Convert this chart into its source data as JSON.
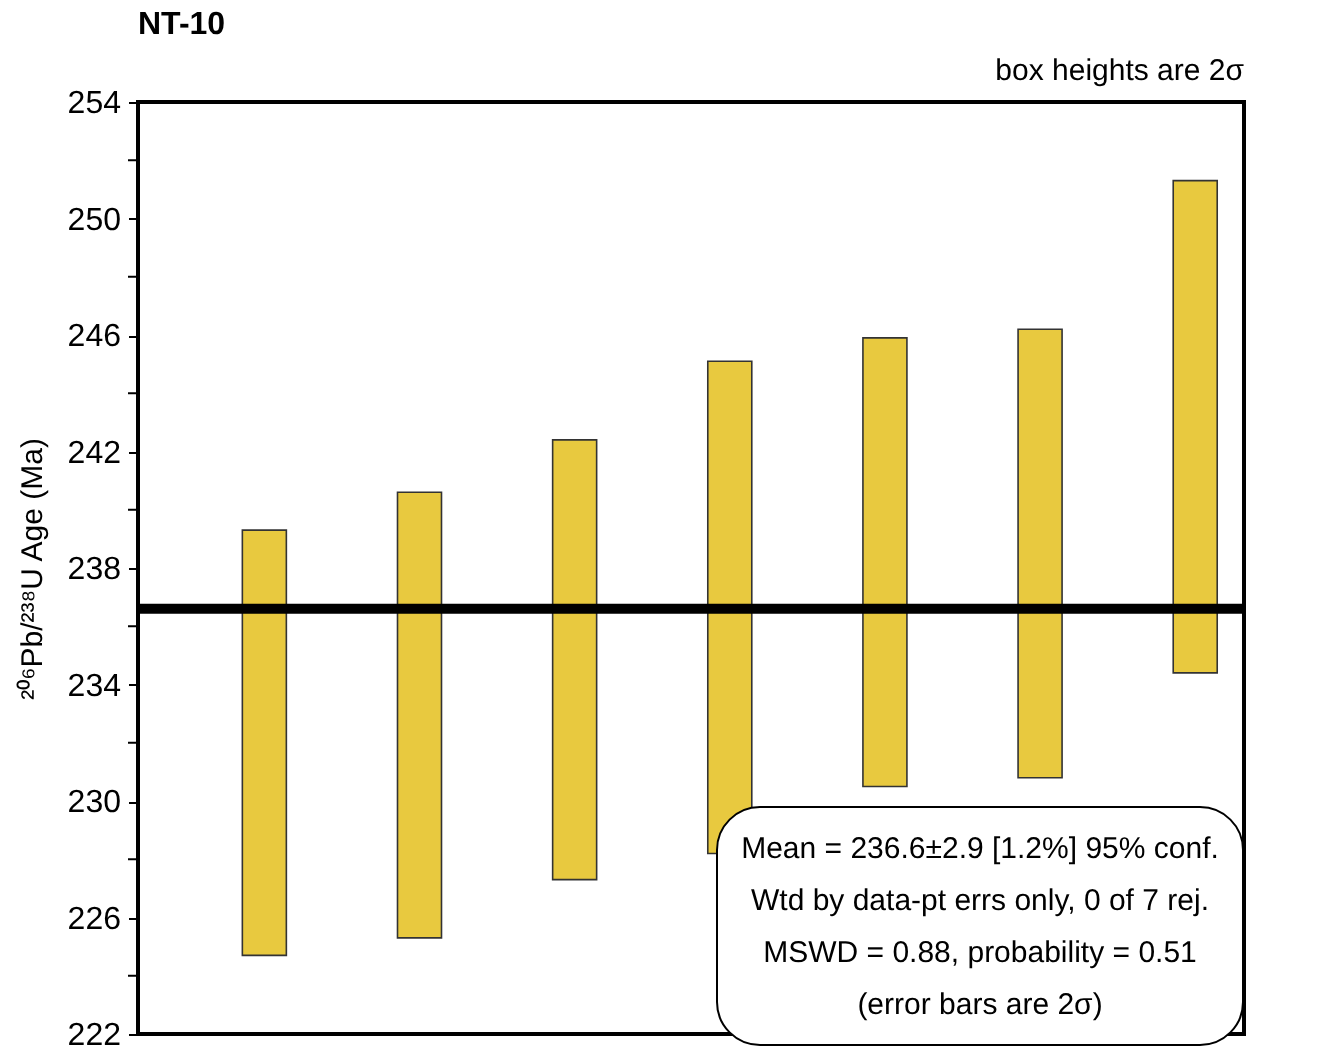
{
  "chart_data": {
    "type": "bar",
    "title": "NT-10",
    "ylabel": "²⁰⁶Pb/²³⁸U Age (Ma)",
    "categories": [
      null,
      null,
      null,
      null,
      null,
      null,
      null
    ],
    "base": [
      224.7,
      225.3,
      227.3,
      228.2,
      230.5,
      230.8,
      234.4
    ],
    "values": [
      14.6,
      15.3,
      15.1,
      16.9,
      15.4,
      15.4,
      16.9
    ],
    "color": "#e8c93f",
    "ylim": [
      222,
      254
    ],
    "yticks": [
      222,
      {
        "value": 224,
        "label": null
      },
      226,
      {
        "value": 228,
        "label": null
      },
      230,
      {
        "value": 232,
        "label": null
      },
      234,
      {
        "value": 236,
        "label": null
      },
      238,
      {
        "value": 240,
        "label": null
      },
      242,
      {
        "value": 244,
        "label": null
      },
      246,
      {
        "value": 248,
        "label": null
      },
      250,
      {
        "value": 252,
        "label": null
      },
      254
    ],
    "ref_lines": [
      {
        "axis": "y",
        "value": 236.6,
        "color": "#000000"
      }
    ],
    "annotations": [
      "box heights are 2σ",
      "Mean = 236.6±2.9  [1.2%]  95% conf.",
      "Wtd by data-pt errs only, 0 of 7 rej.",
      "MSWD = 0.88, probability = 0.51",
      "(error bars are 2σ)"
    ],
    "grid": false
  }
}
